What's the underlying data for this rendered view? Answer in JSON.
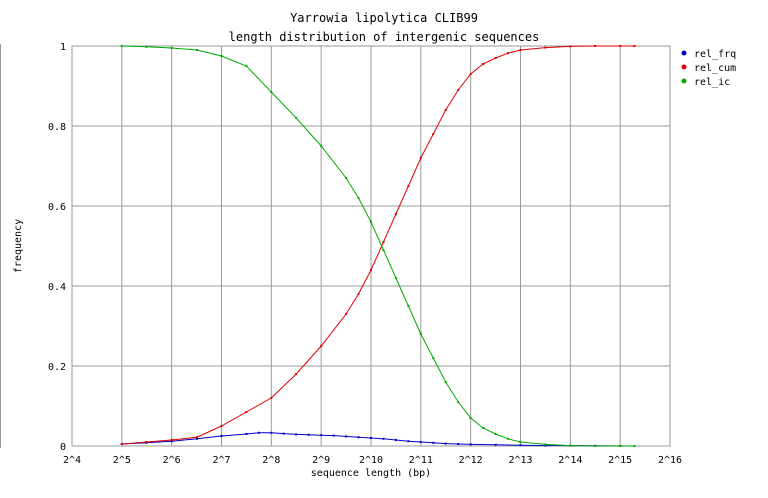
{
  "chart_data": {
    "type": "line",
    "title": "Yarrowia lipolytica CLIB99",
    "subtitle": "length distribution of intergenic sequences",
    "xlabel": "sequence length (bp)",
    "ylabel": "frequency",
    "x_scale": "log2",
    "xlim": [
      16,
      65536
    ],
    "ylim": [
      0,
      1
    ],
    "x_ticks": [
      16,
      32,
      64,
      128,
      256,
      512,
      1024,
      2048,
      4096,
      8192,
      16384,
      32768,
      65536
    ],
    "x_tick_labels": [
      "2^4",
      "2^5",
      "2^6",
      "2^7",
      "2^8",
      "2^9",
      "2^10",
      "2^11",
      "2^12",
      "2^13",
      "2^14",
      "2^15",
      "2^16"
    ],
    "y_ticks": [
      0,
      0.2,
      0.4,
      0.6,
      0.8,
      1
    ],
    "y_tick_labels": [
      "0",
      "0.2",
      "0.4",
      "0.6",
      "0.8",
      "1"
    ],
    "grid": true,
    "legend_position": "top-right",
    "series": [
      {
        "name": "rel_frq",
        "color": "#0000cc",
        "x": [
          32,
          45,
          64,
          91,
          128,
          181,
          215,
          256,
          304,
          362,
          430,
          512,
          609,
          724,
          861,
          1024,
          1218,
          1448,
          1722,
          2048,
          2435,
          2896,
          3444,
          4096,
          5793,
          8192,
          11585,
          16384,
          23170,
          32768,
          40000
        ],
        "y": [
          0.005,
          0.008,
          0.012,
          0.018,
          0.025,
          0.03,
          0.033,
          0.033,
          0.031,
          0.029,
          0.028,
          0.027,
          0.026,
          0.024,
          0.022,
          0.02,
          0.018,
          0.015,
          0.012,
          0.01,
          0.008,
          0.006,
          0.005,
          0.004,
          0.003,
          0.002,
          0.001,
          0.001,
          0.0005,
          0.0002,
          0.0001
        ]
      },
      {
        "name": "rel_cum",
        "color": "#dd0000",
        "x": [
          32,
          45,
          64,
          91,
          128,
          181,
          256,
          362,
          512,
          724,
          861,
          1024,
          1218,
          1448,
          1722,
          2048,
          2435,
          2896,
          3444,
          4096,
          4871,
          5793,
          6889,
          8192,
          11585,
          16384,
          23170,
          32768,
          40000
        ],
        "y": [
          0.005,
          0.01,
          0.015,
          0.022,
          0.05,
          0.085,
          0.12,
          0.18,
          0.25,
          0.33,
          0.38,
          0.44,
          0.51,
          0.58,
          0.65,
          0.72,
          0.78,
          0.84,
          0.89,
          0.93,
          0.955,
          0.97,
          0.982,
          0.99,
          0.996,
          0.999,
          1.0,
          1.0,
          1.0
        ]
      },
      {
        "name": "rel_ic",
        "color": "#00aa00",
        "x": [
          32,
          45,
          64,
          91,
          128,
          181,
          256,
          362,
          512,
          724,
          861,
          1024,
          1218,
          1448,
          1722,
          2048,
          2435,
          2896,
          3444,
          4096,
          4871,
          5793,
          6889,
          8192,
          11585,
          16384,
          23170,
          32768,
          40000
        ],
        "y": [
          1.0,
          0.998,
          0.995,
          0.99,
          0.975,
          0.95,
          0.885,
          0.82,
          0.75,
          0.67,
          0.62,
          0.56,
          0.49,
          0.42,
          0.35,
          0.28,
          0.22,
          0.16,
          0.11,
          0.07,
          0.045,
          0.03,
          0.018,
          0.01,
          0.004,
          0.001,
          0.0,
          0.0,
          0.0
        ]
      }
    ]
  }
}
